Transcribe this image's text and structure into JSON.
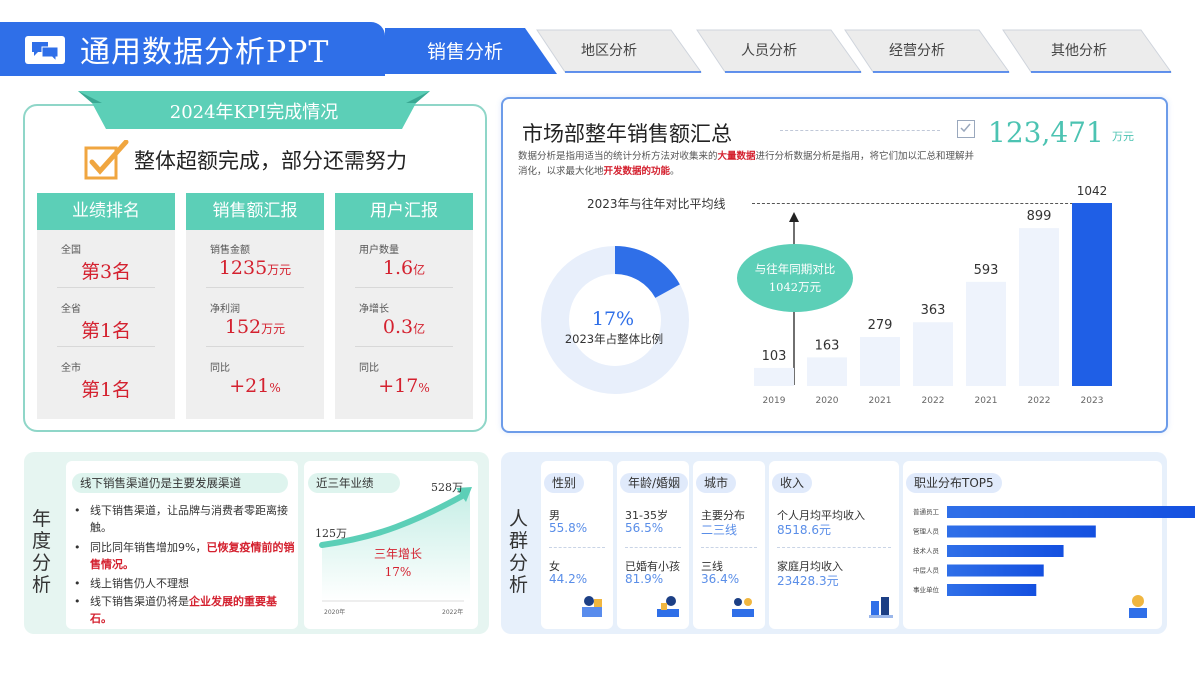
{
  "header": {
    "title": "通用数据分析PPT",
    "tabs": [
      {
        "label": "销售分析",
        "active": true
      },
      {
        "label": "地区分析",
        "active": false
      },
      {
        "label": "人员分析",
        "active": false
      },
      {
        "label": "经营分析",
        "active": false
      },
      {
        "label": "其他分析",
        "active": false
      }
    ]
  },
  "kpi": {
    "ribbon": "2024年KPI完成情况",
    "headline": "整体超额完成，部分还需努力",
    "columns": [
      {
        "header": "业绩排名",
        "cells": [
          {
            "label": "全国",
            "value": "第3名",
            "unit": ""
          },
          {
            "label": "全省",
            "value": "第1名",
            "unit": ""
          },
          {
            "label": "全市",
            "value": "第1名",
            "unit": ""
          }
        ]
      },
      {
        "header": "销售额汇报",
        "cells": [
          {
            "label": "销售金额",
            "value": "1235",
            "unit": "万元"
          },
          {
            "label": "净利润",
            "value": "152",
            "unit": "万元"
          },
          {
            "label": "同比",
            "value": "+21",
            "unit": "%"
          }
        ]
      },
      {
        "header": "用户汇报",
        "cells": [
          {
            "label": "用户数量",
            "value": "1.6",
            "unit": "亿"
          },
          {
            "label": "净增长",
            "value": "0.3",
            "unit": "亿"
          },
          {
            "label": "同比",
            "value": "+17",
            "unit": "%"
          }
        ]
      }
    ]
  },
  "market": {
    "title": "市场部整年销售额汇总",
    "total": "123,471",
    "total_unit": "万元",
    "desc_1": "数据分析是指用适当的统计分析方法对收集来的",
    "desc_hl1": "大量数据",
    "desc_2": "进行分析数据分析是指用，将它们加以汇总和理解并消化，以求最大化地",
    "desc_hl2": "开发数据的功能",
    "desc_3": "。",
    "avg_label": "2023年与往年对比平均线",
    "bubble_line1": "与往年同期对比",
    "bubble_line2": "1042万元",
    "donut_pct": "17%",
    "donut_label": "2023年占整体比例",
    "donut_value": 0.17
  },
  "chart_data": {
    "type": "bar",
    "categories": [
      "2019",
      "2020",
      "2021",
      "2022",
      "2021",
      "2022",
      "2023"
    ],
    "values": [
      103,
      163,
      279,
      363,
      593,
      899,
      1042
    ],
    "ylim": [
      0,
      1042
    ],
    "highlight_index": 6
  },
  "annual": {
    "side_label": "年度分析",
    "card1_header": "线下销售渠道仍是主要发展渠道",
    "bullets": [
      {
        "text": "线下销售渠道，让品牌与消费者零距离接触。",
        "hl": ""
      },
      {
        "text": "同比同年销售增加9%，",
        "hl": "已恢复疫情前的销售情况。"
      },
      {
        "text": "线上销售仍人不理想",
        "hl": ""
      },
      {
        "text": "线下销售渠道仍将是",
        "hl": "企业发展的重要基石。"
      }
    ],
    "card2_header": "近三年业绩",
    "start_value": "125万",
    "end_value": "528万",
    "growth_label": "三年增长",
    "growth_value": "17%",
    "x_start": "2020年",
    "x_end": "2022年"
  },
  "crowd": {
    "side_label": "人群分析",
    "gender": {
      "header": "性别",
      "items": [
        {
          "label": "男",
          "value": "55.8%"
        },
        {
          "label": "女",
          "value": "44.2%"
        }
      ]
    },
    "age": {
      "header": "年龄/婚姻",
      "items": [
        {
          "label": "31-35岁",
          "value": "56.5%"
        },
        {
          "label": "已婚有小孩",
          "value": "81.9%"
        }
      ]
    },
    "city": {
      "header": "城市",
      "items": [
        {
          "label": "主要分布",
          "value": "二三线"
        },
        {
          "label": "三线",
          "value": "36.4%"
        }
      ]
    },
    "income": {
      "header": "收入",
      "items": [
        {
          "label": "个人月均平均收入",
          "value": "8518.6元"
        },
        {
          "label": "家庭月均收入",
          "value": "23428.3元"
        }
      ]
    },
    "jobs": {
      "header": "职业分布TOP5",
      "labels": [
        "普通员工",
        "管理人员",
        "技术人员",
        "中层人员",
        "事业单位"
      ],
      "values": [
        1.0,
        0.6,
        0.47,
        0.39,
        0.36
      ]
    }
  },
  "colors": {
    "brand_blue": "#2f6fe8",
    "teal": "#5ccfb7",
    "red": "#d4212f"
  }
}
